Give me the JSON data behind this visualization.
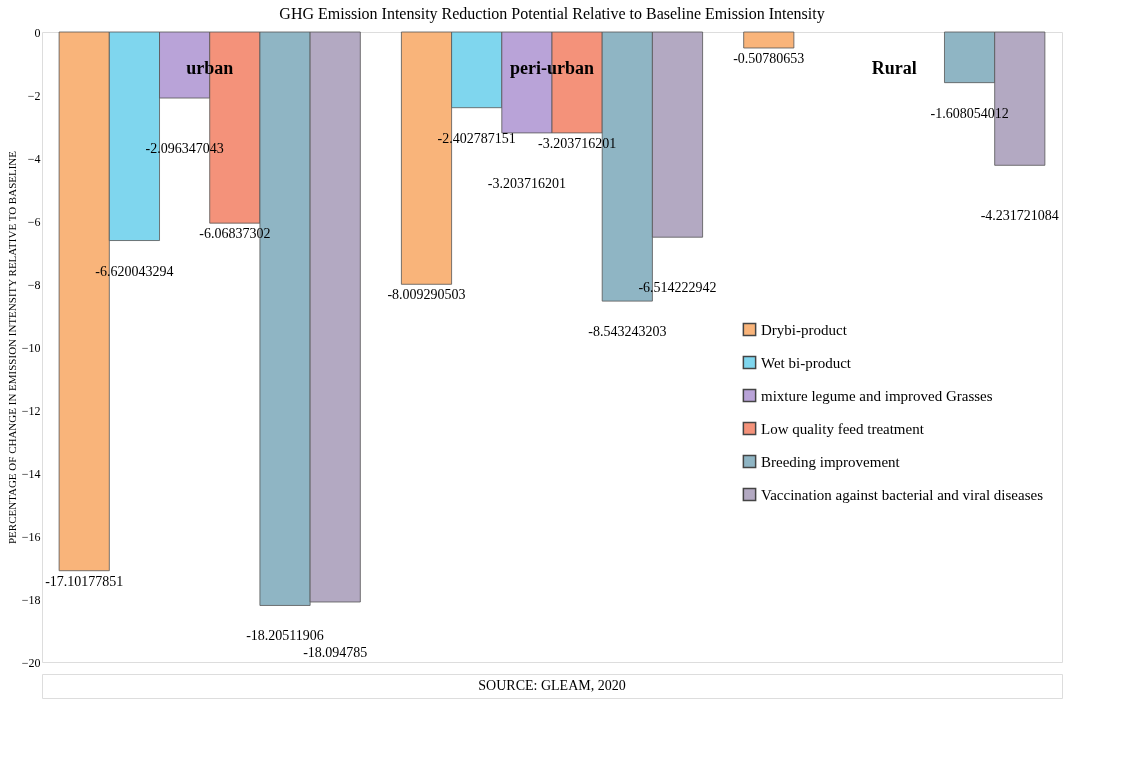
{
  "chart_data": {
    "type": "bar",
    "title": "GHG Emission Intensity Reduction Potential Relative to Baseline Emission Intensity",
    "ylabel": "PERCENTAGE OF CHANGE IN EMISSION INTENSITY RELATIVE TO BASELINE",
    "categories": [
      "urban",
      "peri-urban",
      "Rural"
    ],
    "series": [
      {
        "name": "Drybi-product",
        "color": "#f9b47a",
        "values": [
          -17.10177851,
          -8.009290503,
          -0.50780653
        ]
      },
      {
        "name": "Wet bi-product",
        "color": "#7fd6ee",
        "values": [
          -6.620043294,
          -2.402787151,
          null
        ]
      },
      {
        "name": "mixture legume and improved Grasses",
        "color": "#b9a3d8",
        "values": [
          -2.096347043,
          -3.203716201,
          null
        ]
      },
      {
        "name": "Low quality feed treatment",
        "color": "#f4927a",
        "values": [
          -6.06837302,
          -3.203716201,
          null
        ]
      },
      {
        "name": "Breeding improvement",
        "color": "#8fb5c4",
        "values": [
          -18.20511906,
          -8.543243203,
          -1.608054012
        ]
      },
      {
        "name": " Vaccination against  bacterial and viral diseases",
        "color": "#b3a9c2",
        "values": [
          -18.094785,
          -6.514222942,
          -4.231721084
        ]
      }
    ],
    "ylim": [
      -20,
      0
    ],
    "yticks": [
      0,
      -2,
      -4,
      -6,
      -8,
      -10,
      -12,
      -14,
      -16,
      -18,
      -20
    ],
    "grid": false,
    "legend": "right",
    "data_labels": true,
    "annotations": [
      "SOURCE: GLEAM, 2020"
    ]
  }
}
